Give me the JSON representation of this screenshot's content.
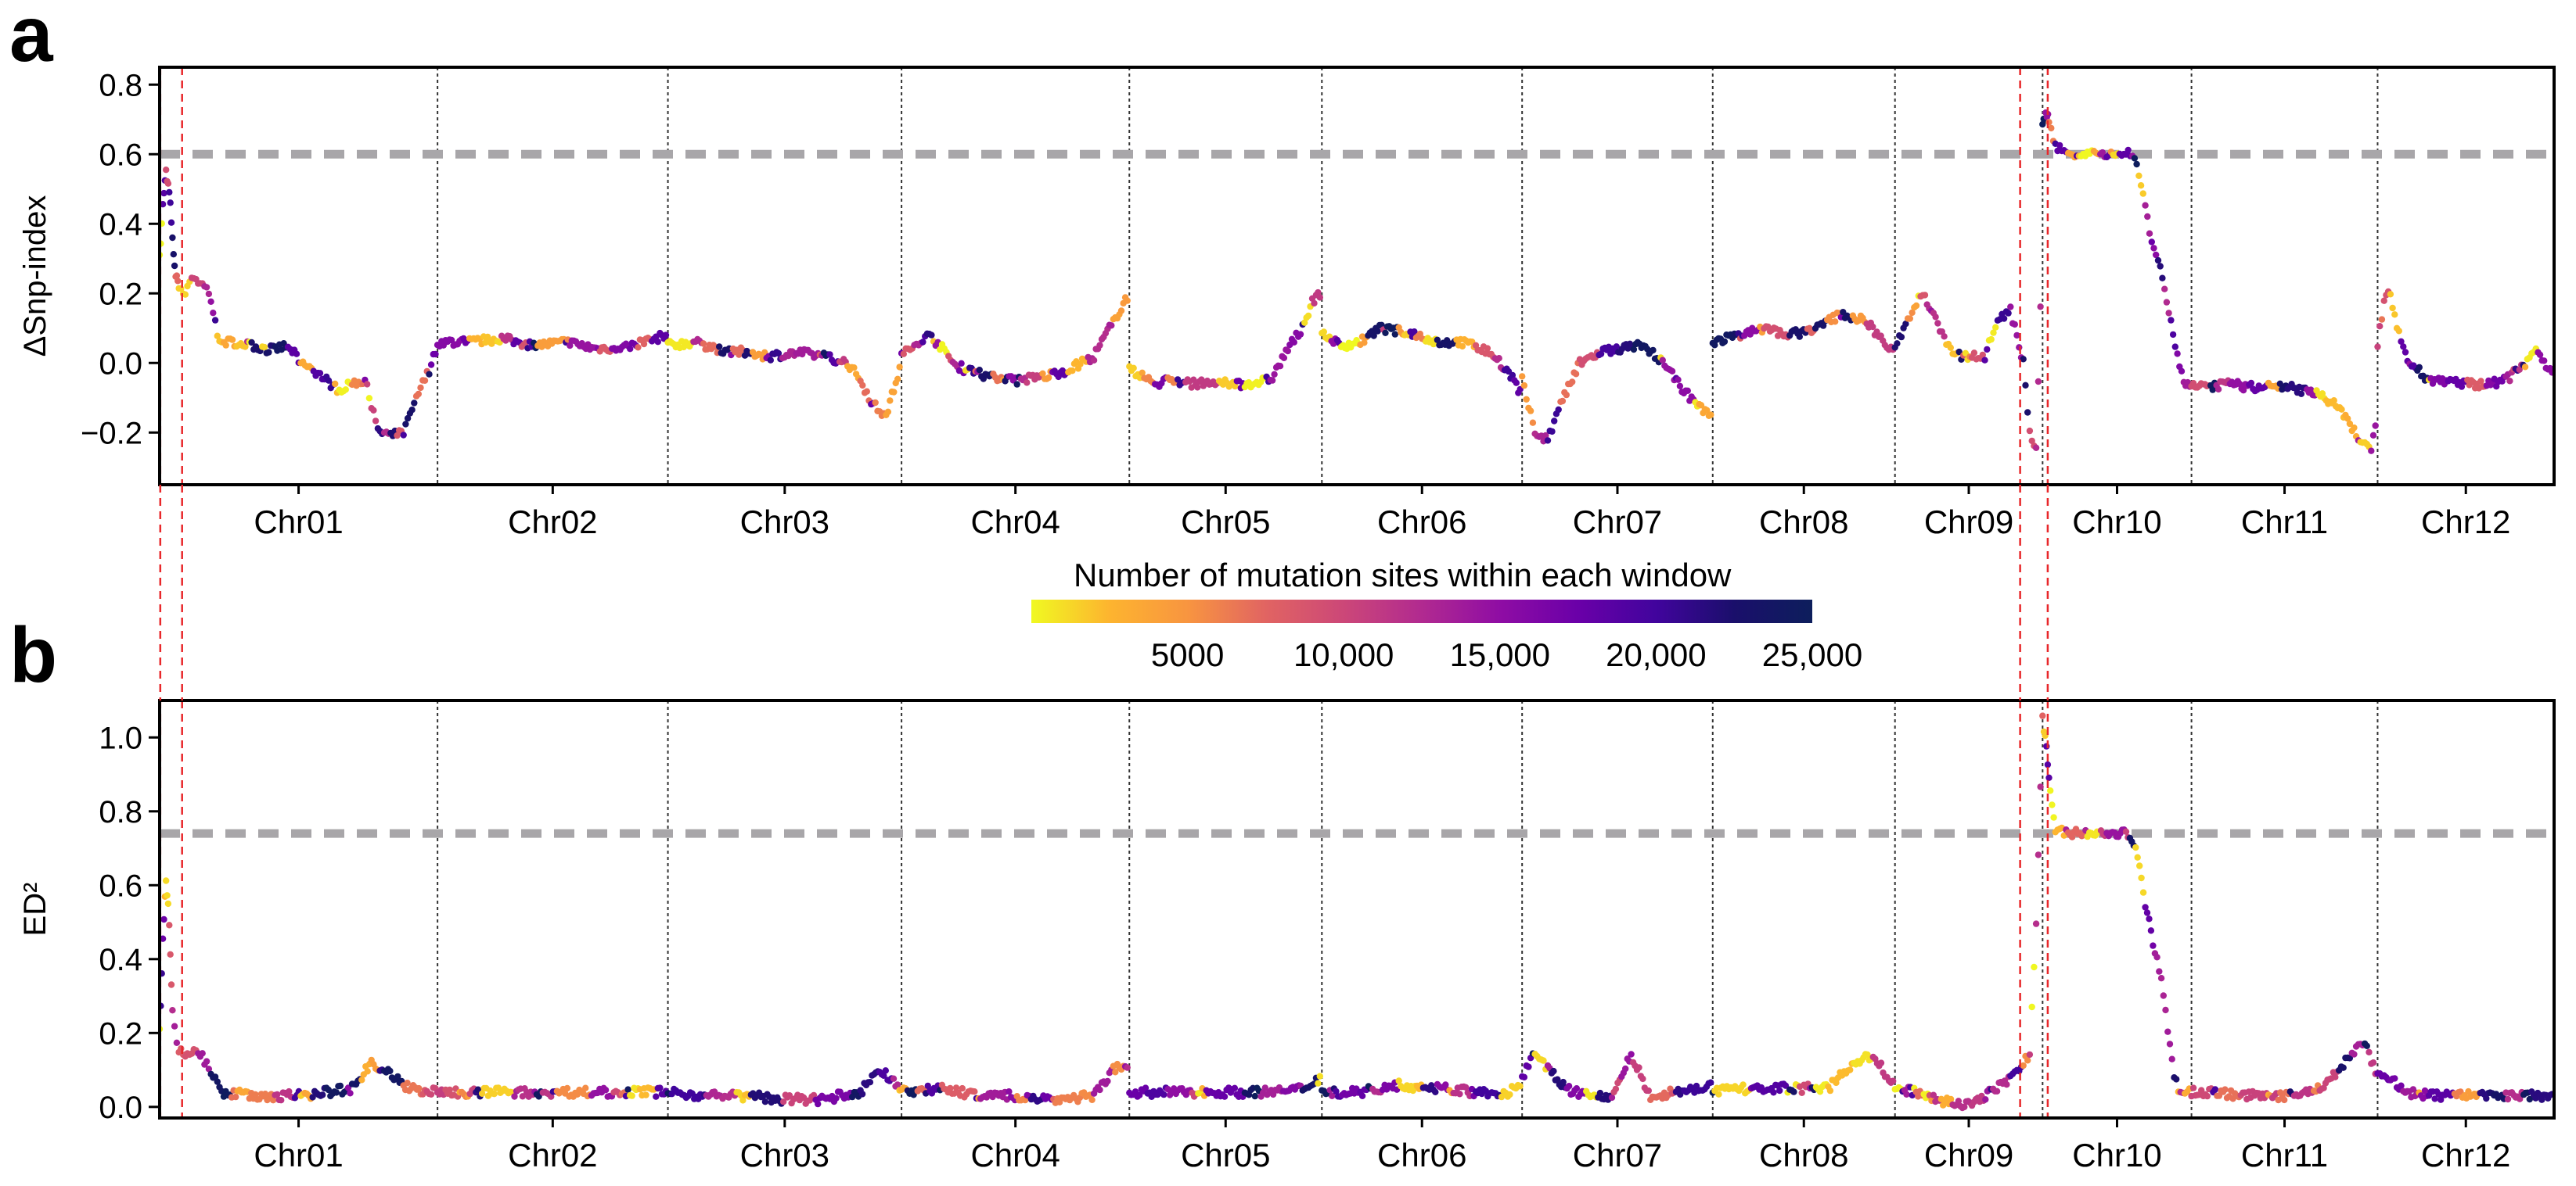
{
  "panels": [
    {
      "letter": "a",
      "ylabel": "ΔSnp-index",
      "yticks": [
        "0.8",
        "0.6",
        "0.4",
        "0.2",
        "0.0",
        "−0.2"
      ]
    },
    {
      "letter": "b",
      "ylabel": "ED²",
      "yticks": [
        "1.0",
        "0.8",
        "0.6",
        "0.4",
        "0.2",
        "0.0"
      ]
    }
  ],
  "colorbar": {
    "title": "Number of mutation sites within each window",
    "ticks": [
      "5000",
      "10,000",
      "15,000",
      "20,000",
      "25,000"
    ],
    "colors": [
      "#f0f921",
      "#fdb42f",
      "#f89540",
      "#e16462",
      "#cc4778",
      "#b12a90",
      "#8f0da4",
      "#6a00a8",
      "#41049d",
      "#1a0f6b",
      "#0d1e5c"
    ]
  },
  "chart_data": [
    {
      "type": "scatter",
      "title": "",
      "xlabel": "",
      "ylabel": "ΔSnp-index",
      "ylim": [
        -0.35,
        0.85
      ],
      "threshold": 0.6,
      "chromosomes": [
        "Chr01",
        "Chr02",
        "Chr03",
        "Chr04",
        "Chr05",
        "Chr06",
        "Chr07",
        "Chr08",
        "Chr09",
        "Chr10",
        "Chr11",
        "Chr12"
      ],
      "chromosome_lengths": [
        43.3,
        35.9,
        36.4,
        35.5,
        30.0,
        31.2,
        29.7,
        28.4,
        23.0,
        23.2,
        29.0,
        27.5
      ],
      "highlight_regions": [
        {
          "chromosome": "Chr01",
          "start_mb": 0.0,
          "end_mb": 3.5
        },
        {
          "chromosome": "Chr09",
          "start_mb": 19.5,
          "end_mb": 23.0
        },
        {
          "chromosome": "Chr10",
          "start_mb": 0.0,
          "end_mb": 0.8
        }
      ],
      "series": [
        {
          "chromosome": "Chr01",
          "pos_mb": [
            0.0,
            0.5,
            1.0,
            1.5,
            2.0,
            2.5,
            3.0,
            4.0,
            5.0,
            7.0,
            8.0,
            9.0,
            10.0,
            12.0,
            14.0,
            16.0,
            18.0,
            20.0,
            22.0,
            24.0,
            26.0,
            28.0,
            30.0,
            32.0,
            33.0,
            34.0,
            35.0,
            36.0,
            38.0,
            40.0,
            42.0,
            43.3
          ],
          "value": [
            0.3,
            0.45,
            0.55,
            0.5,
            0.35,
            0.25,
            0.22,
            0.2,
            0.25,
            0.22,
            0.18,
            0.08,
            0.06,
            0.06,
            0.05,
            0.04,
            0.04,
            0.05,
            0.0,
            -0.02,
            -0.05,
            -0.08,
            -0.06,
            -0.05,
            -0.12,
            -0.2,
            -0.2,
            -0.21,
            -0.2,
            -0.1,
            -0.02,
            0.05
          ]
        },
        {
          "chromosome": "Chr02",
          "pos_mb": [
            0,
            5,
            10,
            15,
            20,
            25,
            30,
            35.9
          ],
          "value": [
            0.06,
            0.06,
            0.07,
            0.05,
            0.06,
            0.04,
            0.05,
            0.08
          ]
        },
        {
          "chromosome": "Chr03",
          "pos_mb": [
            0,
            4,
            8,
            12,
            16,
            20,
            24,
            28,
            30,
            32,
            34,
            36.4
          ],
          "value": [
            0.05,
            0.06,
            0.04,
            0.03,
            0.02,
            0.03,
            0.02,
            0.0,
            -0.05,
            -0.12,
            -0.15,
            0.0
          ]
        },
        {
          "chromosome": "Chr04",
          "pos_mb": [
            0,
            2,
            4,
            6,
            8,
            10,
            14,
            18,
            22,
            26,
            30,
            33,
            35.5
          ],
          "value": [
            0.02,
            0.05,
            0.08,
            0.05,
            0.0,
            -0.02,
            -0.04,
            -0.05,
            -0.04,
            -0.02,
            0.02,
            0.12,
            0.2
          ]
        },
        {
          "chromosome": "Chr05",
          "pos_mb": [
            0,
            2,
            4,
            6,
            10,
            14,
            18,
            22,
            25,
            27,
            28.5,
            30
          ],
          "value": [
            -0.02,
            -0.04,
            -0.06,
            -0.05,
            -0.06,
            -0.06,
            -0.06,
            -0.05,
            0.05,
            0.1,
            0.18,
            0.2
          ]
        },
        {
          "chromosome": "Chr06",
          "pos_mb": [
            0,
            3,
            6,
            9,
            12,
            15,
            18,
            21,
            24,
            27,
            30,
            31.2
          ],
          "value": [
            0.08,
            0.05,
            0.06,
            0.1,
            0.09,
            0.08,
            0.06,
            0.06,
            0.05,
            0.02,
            -0.05,
            -0.1
          ]
        },
        {
          "chromosome": "Chr07",
          "pos_mb": [
            0,
            2,
            4,
            6,
            9,
            12,
            15,
            18,
            21,
            24,
            27,
            29.7
          ],
          "value": [
            -0.05,
            -0.2,
            -0.22,
            -0.12,
            0.0,
            0.03,
            0.04,
            0.05,
            0.02,
            -0.05,
            -0.12,
            -0.15
          ]
        },
        {
          "chromosome": "Chr08",
          "pos_mb": [
            0,
            4,
            8,
            12,
            16,
            20,
            24,
            28.4
          ],
          "value": [
            0.06,
            0.08,
            0.1,
            0.08,
            0.1,
            0.14,
            0.12,
            0.02
          ]
        },
        {
          "chromosome": "Chr09",
          "pos_mb": [
            0,
            2,
            4,
            6,
            8,
            10,
            12,
            14,
            16,
            18,
            20,
            21,
            22,
            23.0
          ],
          "value": [
            0.05,
            0.12,
            0.2,
            0.15,
            0.05,
            0.02,
            0.02,
            0.02,
            0.12,
            0.15,
            0.0,
            -0.2,
            -0.25,
            0.35
          ]
        },
        {
          "chromosome": "Chr10",
          "pos_mb": [
            0,
            0.5,
            1.0,
            2,
            4,
            6,
            8,
            10,
            12,
            14,
            15,
            16,
            17,
            18,
            19,
            20,
            21,
            22,
            23.2
          ],
          "value": [
            0.68,
            0.72,
            0.7,
            0.62,
            0.6,
            0.6,
            0.6,
            0.6,
            0.6,
            0.6,
            0.55,
            0.45,
            0.35,
            0.3,
            0.22,
            0.12,
            0.02,
            -0.05,
            -0.08
          ]
        },
        {
          "chromosome": "Chr11",
          "pos_mb": [
            0,
            3,
            6,
            9,
            12,
            15,
            18,
            21,
            24,
            26,
            28,
            29.0
          ],
          "value": [
            -0.06,
            -0.07,
            -0.06,
            -0.07,
            -0.07,
            -0.07,
            -0.08,
            -0.1,
            -0.15,
            -0.22,
            -0.25,
            -0.15
          ]
        },
        {
          "chromosome": "Chr12",
          "pos_mb": [
            0,
            1,
            2,
            3,
            5,
            8,
            11,
            14,
            17,
            20,
            23,
            25,
            27.5
          ],
          "value": [
            0.05,
            0.18,
            0.2,
            0.1,
            0.0,
            -0.05,
            -0.05,
            -0.06,
            -0.06,
            -0.05,
            0.0,
            0.04,
            -0.05
          ]
        }
      ]
    },
    {
      "type": "scatter",
      "title": "",
      "xlabel": "",
      "ylabel": "ED²",
      "ylim": [
        -0.03,
        1.1
      ],
      "threshold": 0.74,
      "chromosomes": [
        "Chr01",
        "Chr02",
        "Chr03",
        "Chr04",
        "Chr05",
        "Chr06",
        "Chr07",
        "Chr08",
        "Chr09",
        "Chr10",
        "Chr11",
        "Chr12"
      ],
      "chromosome_lengths": [
        43.3,
        35.9,
        36.4,
        35.5,
        30.0,
        31.2,
        29.7,
        28.4,
        23.0,
        23.2,
        29.0,
        27.5
      ],
      "series": [
        {
          "chromosome": "Chr01",
          "pos_mb": [
            0.0,
            0.5,
            1.0,
            1.5,
            2.0,
            3.0,
            4.0,
            6.0,
            8.0,
            10.0,
            14.0,
            18.0,
            22.0,
            26.0,
            30.0,
            33.0,
            35.0,
            38.0,
            41.0,
            43.3
          ],
          "value": [
            0.2,
            0.45,
            0.62,
            0.5,
            0.25,
            0.15,
            0.14,
            0.15,
            0.1,
            0.04,
            0.03,
            0.03,
            0.03,
            0.04,
            0.05,
            0.12,
            0.1,
            0.06,
            0.04,
            0.04
          ]
        },
        {
          "chromosome": "Chr02",
          "pos_mb": [
            0,
            6,
            12,
            18,
            24,
            30,
            35.9
          ],
          "value": [
            0.04,
            0.04,
            0.04,
            0.04,
            0.04,
            0.04,
            0.04
          ]
        },
        {
          "chromosome": "Chr03",
          "pos_mb": [
            0,
            6,
            12,
            18,
            24,
            30,
            33,
            36.4
          ],
          "value": [
            0.04,
            0.03,
            0.03,
            0.02,
            0.02,
            0.04,
            0.1,
            0.05
          ]
        },
        {
          "chromosome": "Chr04",
          "pos_mb": [
            0,
            6,
            12,
            18,
            24,
            30,
            33,
            35.5
          ],
          "value": [
            0.04,
            0.05,
            0.03,
            0.03,
            0.02,
            0.03,
            0.1,
            0.12
          ]
        },
        {
          "chromosome": "Chr05",
          "pos_mb": [
            0,
            6,
            12,
            18,
            24,
            27,
            30
          ],
          "value": [
            0.04,
            0.04,
            0.04,
            0.04,
            0.04,
            0.05,
            0.08
          ]
        },
        {
          "chromosome": "Chr06",
          "pos_mb": [
            0,
            6,
            12,
            18,
            24,
            28,
            31.2
          ],
          "value": [
            0.04,
            0.04,
            0.06,
            0.05,
            0.04,
            0.03,
            0.06
          ]
        },
        {
          "chromosome": "Chr07",
          "pos_mb": [
            0,
            2,
            4,
            7,
            10,
            14,
            17,
            20,
            24,
            29.7
          ],
          "value": [
            0.08,
            0.15,
            0.1,
            0.05,
            0.03,
            0.03,
            0.14,
            0.03,
            0.04,
            0.06
          ]
        },
        {
          "chromosome": "Chr08",
          "pos_mb": [
            0,
            6,
            12,
            18,
            22,
            25,
            28.4
          ],
          "value": [
            0.04,
            0.05,
            0.05,
            0.05,
            0.12,
            0.14,
            0.05
          ]
        },
        {
          "chromosome": "Chr09",
          "pos_mb": [
            0,
            3,
            6,
            9,
            12,
            15,
            18,
            20,
            21,
            22,
            23.0
          ],
          "value": [
            0.05,
            0.04,
            0.02,
            0.01,
            0.01,
            0.04,
            0.08,
            0.12,
            0.14,
            0.5,
            1.05
          ]
        },
        {
          "chromosome": "Chr10",
          "pos_mb": [
            0,
            0.6,
            1.2,
            2,
            4,
            7,
            10,
            13,
            14.5,
            16,
            17.5,
            18.5,
            19.5,
            20.5,
            21.5,
            23.2
          ],
          "value": [
            1.05,
            0.98,
            0.85,
            0.75,
            0.74,
            0.74,
            0.74,
            0.74,
            0.7,
            0.55,
            0.42,
            0.35,
            0.2,
            0.08,
            0.04,
            0.04
          ]
        },
        {
          "chromosome": "Chr11",
          "pos_mb": [
            0,
            4,
            8,
            12,
            16,
            20,
            23,
            25,
            27,
            29.0
          ],
          "value": [
            0.04,
            0.04,
            0.03,
            0.03,
            0.03,
            0.05,
            0.1,
            0.15,
            0.17,
            0.08
          ]
        },
        {
          "chromosome": "Chr12",
          "pos_mb": [
            0,
            2,
            4,
            8,
            12,
            16,
            20,
            24,
            27.5
          ],
          "value": [
            0.1,
            0.08,
            0.04,
            0.03,
            0.03,
            0.03,
            0.03,
            0.03,
            0.03
          ]
        }
      ]
    }
  ]
}
